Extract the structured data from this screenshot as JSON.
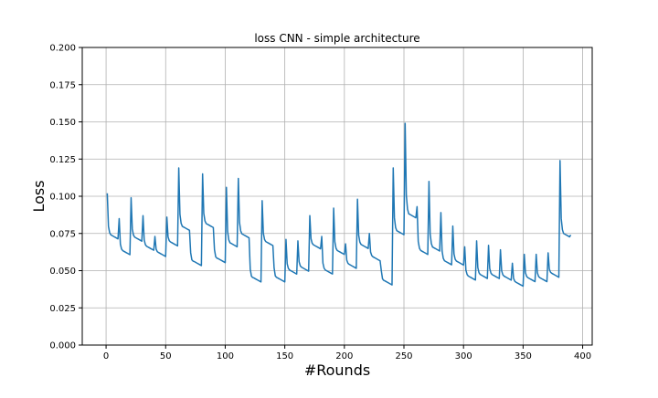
{
  "chart_data": {
    "type": "line",
    "title": "loss CNN - simple architecture",
    "xlabel": "#Rounds",
    "ylabel": "Loss",
    "xlim": [
      -20,
      408
    ],
    "ylim": [
      0,
      0.2
    ],
    "xticks": [
      0,
      50,
      100,
      150,
      200,
      250,
      300,
      350,
      400
    ],
    "yticks": [
      0.0,
      0.025,
      0.05,
      0.075,
      0.1,
      0.125,
      0.15,
      0.175,
      0.2
    ],
    "ytick_labels": [
      "0.000",
      "0.025",
      "0.050",
      "0.075",
      "0.100",
      "0.125",
      "0.150",
      "0.175",
      "0.200"
    ],
    "grid": true,
    "legend": null,
    "colors": {
      "line": "#1f77b4",
      "grid": "#b0b0b0",
      "axes": "#000000"
    },
    "blocks": [
      {
        "start": 1,
        "peak": 0.102,
        "plateau": 0.0735
      },
      {
        "start": 11,
        "peak": 0.085,
        "plateau": 0.063
      },
      {
        "start": 21,
        "peak": 0.099,
        "plateau": 0.072
      },
      {
        "start": 31,
        "peak": 0.087,
        "plateau": 0.066
      },
      {
        "start": 41,
        "peak": 0.073,
        "plateau": 0.062
      },
      {
        "start": 51,
        "peak": 0.086,
        "plateau": 0.069
      },
      {
        "start": 61,
        "peak": 0.119,
        "plateau": 0.079
      },
      {
        "start": 71,
        "peak": 0.062,
        "plateau": 0.056
      },
      {
        "start": 81,
        "peak": 0.115,
        "plateau": 0.081
      },
      {
        "start": 91,
        "peak": 0.064,
        "plateau": 0.058
      },
      {
        "start": 101,
        "peak": 0.106,
        "plateau": 0.068
      },
      {
        "start": 111,
        "peak": 0.112,
        "plateau": 0.074
      },
      {
        "start": 121,
        "peak": 0.051,
        "plateau": 0.045
      },
      {
        "start": 131,
        "peak": 0.097,
        "plateau": 0.069
      },
      {
        "start": 141,
        "peak": 0.052,
        "plateau": 0.045
      },
      {
        "start": 151,
        "peak": 0.071,
        "plateau": 0.05
      },
      {
        "start": 161,
        "peak": 0.07,
        "plateau": 0.052
      },
      {
        "start": 171,
        "peak": 0.087,
        "plateau": 0.067
      },
      {
        "start": 181,
        "peak": 0.073,
        "plateau": 0.05
      },
      {
        "start": 191,
        "peak": 0.092,
        "plateau": 0.063
      },
      {
        "start": 201,
        "peak": 0.068,
        "plateau": 0.054
      },
      {
        "start": 211,
        "peak": 0.098,
        "plateau": 0.067
      },
      {
        "start": 221,
        "peak": 0.075,
        "plateau": 0.059
      },
      {
        "start": 231,
        "peak": 0.05,
        "plateau": 0.043
      },
      {
        "start": 241,
        "peak": 0.119,
        "plateau": 0.076
      },
      {
        "start": 251,
        "peak": 0.149,
        "plateau": 0.087
      },
      {
        "start": 261,
        "peak": 0.093,
        "plateau": 0.063
      },
      {
        "start": 271,
        "peak": 0.11,
        "plateau": 0.065
      },
      {
        "start": 281,
        "peak": 0.089,
        "plateau": 0.056
      },
      {
        "start": 291,
        "peak": 0.08,
        "plateau": 0.056
      },
      {
        "start": 301,
        "peak": 0.066,
        "plateau": 0.046
      },
      {
        "start": 311,
        "peak": 0.07,
        "plateau": 0.047
      },
      {
        "start": 321,
        "peak": 0.067,
        "plateau": 0.047
      },
      {
        "start": 331,
        "peak": 0.064,
        "plateau": 0.046
      },
      {
        "start": 341,
        "peak": 0.055,
        "plateau": 0.042
      },
      {
        "start": 351,
        "peak": 0.061,
        "plateau": 0.045
      },
      {
        "start": 361,
        "peak": 0.061,
        "plateau": 0.045
      },
      {
        "start": 371,
        "peak": 0.062,
        "plateau": 0.048
      },
      {
        "start": 381,
        "peak": 0.124,
        "plateau": 0.074
      }
    ],
    "x_end": 390,
    "y_end": 0.074
  }
}
